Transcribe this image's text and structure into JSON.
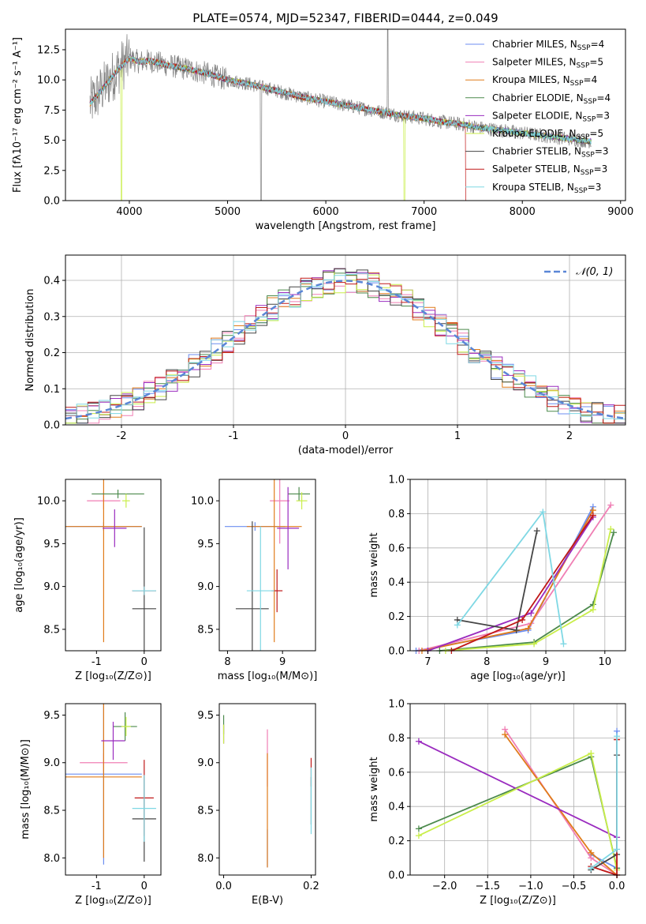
{
  "colors": {
    "chab_miles": "#6c8ef0",
    "salp_miles": "#f07fb4",
    "krou_miles": "#e07b1a",
    "chab_elodie": "#4c8a4c",
    "salp_elodie": "#9a2bbf",
    "krou_elodie": "#c9ee4a",
    "chab_stelib": "#454545",
    "salp_stelib": "#c01818",
    "krou_stelib": "#7fd8e4",
    "data": "#808080",
    "normal": "#5a86d6"
  },
  "chart_data": [
    {
      "id": "spectrum",
      "type": "line",
      "title": "PLATE=0574, MJD=52347, FIBERID=0444, z=0.049",
      "xlabel": "wavelength [Angstrom, rest frame]",
      "ylabel": "Flux [fλ10⁻¹⁷ erg cm⁻² s⁻¹ A⁻¹]",
      "xlim": [
        3350,
        9050
      ],
      "ylim": [
        0,
        14.2
      ],
      "xticks": [
        "4000",
        "5000",
        "6000",
        "7000",
        "8000",
        "9000"
      ],
      "yticks": [
        "0.0",
        "2.5",
        "5.0",
        "7.5",
        "10.0",
        "12.5"
      ],
      "continuum": [
        [
          3600,
          8.0
        ],
        [
          3700,
          9.0
        ],
        [
          3800,
          10.0
        ],
        [
          3900,
          11.0
        ],
        [
          4000,
          11.8
        ],
        [
          4100,
          11.5
        ],
        [
          4200,
          11.6
        ],
        [
          4400,
          11.2
        ],
        [
          4600,
          10.9
        ],
        [
          4800,
          10.5
        ],
        [
          5000,
          10.0
        ],
        [
          5200,
          9.7
        ],
        [
          5400,
          9.3
        ],
        [
          5600,
          8.9
        ],
        [
          5800,
          8.5
        ],
        [
          6000,
          8.2
        ],
        [
          6200,
          7.9
        ],
        [
          6400,
          7.6
        ],
        [
          6600,
          7.3
        ],
        [
          6800,
          7.0
        ],
        [
          7000,
          6.8
        ],
        [
          7200,
          6.5
        ],
        [
          7400,
          6.3
        ],
        [
          7600,
          6.0
        ],
        [
          7800,
          5.8
        ],
        [
          8000,
          5.6
        ],
        [
          8200,
          5.4
        ],
        [
          8400,
          5.2
        ],
        [
          8600,
          5.0
        ],
        [
          8700,
          4.9
        ]
      ],
      "data_range": [
        3600,
        8700
      ],
      "legend_position": "top-right",
      "legend": [
        {
          "label": "Chabrier MILES, N",
          "sub": "SSP",
          "suffix": "=4",
          "color": "#6c8ef0"
        },
        {
          "label": "Salpeter MILES, N",
          "sub": "SSP",
          "suffix": "=5",
          "color": "#f07fb4"
        },
        {
          "label": "Kroupa MILES, N",
          "sub": "SSP",
          "suffix": "=4",
          "color": "#e07b1a"
        },
        {
          "label": "Chabrier ELODIE, N",
          "sub": "SSP",
          "suffix": "=4",
          "color": "#4c8a4c"
        },
        {
          "label": "Salpeter ELODIE, N",
          "sub": "SSP",
          "suffix": "=3",
          "color": "#9a2bbf"
        },
        {
          "label": "Kroupa ELODIE, N",
          "sub": "SSP",
          "suffix": "=5",
          "color": "#c9ee4a"
        },
        {
          "label": "Chabrier STELIB, N",
          "sub": "SSP",
          "suffix": "=3",
          "color": "#454545"
        },
        {
          "label": "Salpeter STELIB, N",
          "sub": "SSP",
          "suffix": "=3",
          "color": "#c01818"
        },
        {
          "label": "Kroupa STELIB, N",
          "sub": "SSP",
          "suffix": "=3",
          "color": "#7fd8e4"
        }
      ]
    },
    {
      "id": "residuals",
      "type": "line",
      "xlabel": "(data-model)/error",
      "ylabel": "Normed distribution",
      "xlim": [
        -2.5,
        2.5
      ],
      "ylim": [
        0,
        0.47
      ],
      "xticks": [
        -2,
        -1,
        0,
        1,
        2
      ],
      "yticks": [
        "0.0",
        "0.1",
        "0.2",
        "0.3",
        "0.4"
      ],
      "grid": true,
      "legend_label": "𝒩(0, 1)",
      "legend_position": "top-right",
      "bin_width": 0.1
    },
    {
      "id": "age_vs_Z",
      "type": "scatter",
      "xlabel": "Z [log₁₀(Z/Z⊙)]",
      "ylabel": "age  [log₁₀(age/yr)]",
      "xlim": [
        -1.65,
        0.35
      ],
      "ylim": [
        8.25,
        10.25
      ],
      "xticks": [
        -1,
        0
      ],
      "yticks": [
        "8.5",
        "9.0",
        "9.5",
        "10.0"
      ],
      "points": [
        {
          "x": -0.85,
          "y": 9.7,
          "xerr": 0.8,
          "yerr": 0.05,
          "c": "chab_miles"
        },
        {
          "x": -0.85,
          "y": 10.0,
          "xerr": 0.35,
          "yerr": 0.1,
          "c": "salp_miles"
        },
        {
          "x": -0.85,
          "y": 9.7,
          "xerr": 0.8,
          "yerr": 1.35,
          "c": "krou_miles"
        },
        {
          "x": -0.55,
          "y": 10.08,
          "xerr": 0.55,
          "yerr": 0.05,
          "c": "chab_elodie"
        },
        {
          "x": -0.62,
          "y": 9.68,
          "xerr": 0.25,
          "yerr": 0.22,
          "c": "salp_elodie"
        },
        {
          "x": -0.38,
          "y": 10.0,
          "xerr": 0.08,
          "yerr": 0.08,
          "c": "krou_elodie"
        },
        {
          "x": 0.0,
          "y": 8.74,
          "xerr": 0.25,
          "yerr": 0.95,
          "c": "chab_stelib"
        },
        {
          "x": 0.0,
          "y": 8.95,
          "xerr": 0.25,
          "yerr": 0.05,
          "c": "salp_stelib"
        },
        {
          "x": 0.0,
          "y": 8.95,
          "xerr": 0.25,
          "yerr": 0.05,
          "c": "krou_stelib"
        }
      ]
    },
    {
      "id": "age_vs_mass",
      "type": "scatter",
      "xlabel": "mass [log₁₀(M/M⊙)]",
      "ylabel": "",
      "xlim": [
        7.85,
        9.6
      ],
      "ylim": [
        8.25,
        10.25
      ],
      "xticks": [
        8,
        9
      ],
      "yticks": [
        "8.5",
        "9.0",
        "9.5",
        "10.0"
      ],
      "points": [
        {
          "x": 8.5,
          "y": 9.7,
          "xerr": 0.55,
          "yerr": 0.05,
          "c": "chab_miles"
        },
        {
          "x": 8.95,
          "y": 10.0,
          "xerr": 0.18,
          "yerr": 0.5,
          "c": "salp_miles"
        },
        {
          "x": 8.85,
          "y": 9.7,
          "xerr": 0.5,
          "yerr": 1.35,
          "c": "krou_miles"
        },
        {
          "x": 9.3,
          "y": 10.08,
          "xerr": 0.2,
          "yerr": 0.08,
          "c": "chab_elodie"
        },
        {
          "x": 9.1,
          "y": 9.68,
          "xerr": 0.2,
          "yerr": 0.48,
          "c": "salp_elodie"
        },
        {
          "x": 9.35,
          "y": 10.0,
          "xerr": 0.1,
          "yerr": 0.1,
          "c": "krou_elodie"
        },
        {
          "x": 8.45,
          "y": 8.74,
          "xerr": 0.3,
          "yerr": 1.02,
          "c": "chab_stelib"
        },
        {
          "x": 8.9,
          "y": 8.95,
          "xerr": 0.1,
          "yerr": 0.25,
          "c": "salp_stelib"
        },
        {
          "x": 8.6,
          "y": 8.95,
          "xerr": 0.25,
          "yerr": 0.75,
          "c": "krou_stelib"
        }
      ]
    },
    {
      "id": "weight_vs_age",
      "type": "line",
      "xlabel": "age  [log₁₀(age/yr)]",
      "ylabel": "mass weight",
      "xlim": [
        6.7,
        10.35
      ],
      "ylim": [
        0,
        1.0
      ],
      "xticks": [
        7,
        8,
        9,
        10
      ],
      "yticks": [
        "0.0",
        "0.2",
        "0.4",
        "0.6",
        "0.8",
        "1.0"
      ],
      "grid": true,
      "series": [
        {
          "c": "chab_miles",
          "x": [
            6.8,
            8.7,
            9.8
          ],
          "y": [
            0.0,
            0.12,
            0.84
          ]
        },
        {
          "c": "salp_miles",
          "x": [
            6.85,
            8.75,
            10.1
          ],
          "y": [
            0.0,
            0.16,
            0.85
          ]
        },
        {
          "c": "krou_miles",
          "x": [
            6.9,
            8.7,
            9.8
          ],
          "y": [
            0.0,
            0.13,
            0.82
          ]
        },
        {
          "c": "chab_elodie",
          "x": [
            7.2,
            8.8,
            9.8,
            10.15
          ],
          "y": [
            0.0,
            0.05,
            0.27,
            0.69
          ]
        },
        {
          "c": "salp_elodie",
          "x": [
            7.0,
            8.75,
            9.8
          ],
          "y": [
            0.0,
            0.22,
            0.78
          ]
        },
        {
          "c": "krou_elodie",
          "x": [
            7.3,
            8.8,
            9.8,
            10.1
          ],
          "y": [
            0.0,
            0.04,
            0.24,
            0.71
          ]
        },
        {
          "c": "chab_stelib",
          "x": [
            7.5,
            8.5,
            8.85
          ],
          "y": [
            0.18,
            0.12,
            0.7
          ]
        },
        {
          "c": "salp_stelib",
          "x": [
            7.4,
            8.6,
            9.8
          ],
          "y": [
            0.0,
            0.18,
            0.79
          ]
        },
        {
          "c": "krou_stelib",
          "x": [
            7.5,
            8.95,
            9.3
          ],
          "y": [
            0.15,
            0.81,
            0.04
          ]
        }
      ]
    },
    {
      "id": "mass_vs_Z",
      "type": "scatter",
      "xlabel": "Z [log₁₀(Z/Z⊙)]",
      "ylabel": "mass [log₁₀(M/M⊙)]",
      "xlim": [
        -1.65,
        0.35
      ],
      "ylim": [
        7.82,
        9.62
      ],
      "xticks": [
        -1,
        0
      ],
      "yticks": [
        "8.0",
        "8.5",
        "9.0",
        "9.5"
      ],
      "points": [
        {
          "x": -0.85,
          "y": 8.88,
          "xerr": 0.8,
          "yerr": 0.95,
          "c": "chab_miles"
        },
        {
          "x": -0.85,
          "y": 9.0,
          "xerr": 0.5,
          "yerr": 0.1,
          "c": "salp_miles"
        },
        {
          "x": -0.85,
          "y": 8.85,
          "xerr": 0.8,
          "yerr": 0.85,
          "c": "krou_miles"
        },
        {
          "x": -0.4,
          "y": 9.38,
          "xerr": 0.25,
          "yerr": 0.15,
          "c": "chab_elodie"
        },
        {
          "x": -0.65,
          "y": 9.23,
          "xerr": 0.25,
          "yerr": 0.2,
          "c": "salp_elodie"
        },
        {
          "x": -0.38,
          "y": 9.38,
          "xerr": 0.1,
          "yerr": 0.1,
          "c": "krou_elodie"
        },
        {
          "x": 0.0,
          "y": 8.41,
          "xerr": 0.25,
          "yerr": 0.45,
          "c": "chab_stelib"
        },
        {
          "x": 0.0,
          "y": 8.63,
          "xerr": 0.2,
          "yerr": 0.4,
          "c": "salp_stelib"
        },
        {
          "x": 0.0,
          "y": 8.52,
          "xerr": 0.25,
          "yerr": 0.35,
          "c": "krou_stelib"
        }
      ]
    },
    {
      "id": "mass_vs_ebv",
      "type": "scatter",
      "xlabel": "E(B-V)",
      "ylabel": "",
      "xlim": [
        -0.01,
        0.21
      ],
      "ylim": [
        7.82,
        9.62
      ],
      "xticks": [
        "0.0",
        "0.2"
      ],
      "yticks": [
        "8.0",
        "8.5",
        "9.0",
        "9.5"
      ],
      "points": [
        {
          "x": 0.1,
          "y": 8.1,
          "xerr": 0,
          "yerr": 0.2,
          "c": "chab_miles"
        },
        {
          "x": 0.1,
          "y": 9.05,
          "xerr": 0,
          "yerr": 0.3,
          "c": "salp_miles"
        },
        {
          "x": 0.1,
          "y": 8.5,
          "xerr": 0,
          "yerr": 0.6,
          "c": "krou_miles"
        },
        {
          "x": 0.0,
          "y": 9.4,
          "xerr": 0,
          "yerr": 0.1,
          "c": "chab_elodie"
        },
        {
          "x": 0.0,
          "y": 9.3,
          "xerr": 0,
          "yerr": 0.1,
          "c": "salp_elodie"
        },
        {
          "x": 0.0,
          "y": 9.3,
          "xerr": 0,
          "yerr": 0.1,
          "c": "krou_elodie"
        },
        {
          "x": 0.2,
          "y": 8.6,
          "xerr": 0,
          "yerr": 0.25,
          "c": "chab_stelib"
        },
        {
          "x": 0.2,
          "y": 8.9,
          "xerr": 0,
          "yerr": 0.15,
          "c": "salp_stelib"
        },
        {
          "x": 0.2,
          "y": 8.6,
          "xerr": 0,
          "yerr": 0.35,
          "c": "krou_stelib"
        }
      ]
    },
    {
      "id": "weight_vs_Z",
      "type": "line",
      "xlabel": "Z [log₁₀(Z/Z⊙)]",
      "ylabel": "mass weight",
      "xlim": [
        -2.4,
        0.1
      ],
      "ylim": [
        0,
        1.0
      ],
      "xticks": [
        "−2.0",
        "−1.5",
        "−1.0",
        "−0.5",
        "0.0"
      ],
      "xtick_values": [
        -2.0,
        -1.5,
        -1.0,
        -0.5,
        0.0
      ],
      "yticks": [
        "0.0",
        "0.2",
        "0.4",
        "0.6",
        "0.8",
        "1.0"
      ],
      "grid": true,
      "series": [
        {
          "c": "chab_miles",
          "x": [
            -0.3,
            0.0,
            0.0
          ],
          "y": [
            0.12,
            0.04,
            0.84
          ]
        },
        {
          "c": "salp_miles",
          "x": [
            -1.3,
            -0.3,
            0.0
          ],
          "y": [
            0.85,
            0.1,
            0.0
          ]
        },
        {
          "c": "krou_miles",
          "x": [
            -1.3,
            -0.3,
            0.0
          ],
          "y": [
            0.82,
            0.13,
            0.0
          ]
        },
        {
          "c": "chab_elodie",
          "x": [
            -2.3,
            -0.3,
            0.0
          ],
          "y": [
            0.27,
            0.69,
            0.04
          ]
        },
        {
          "c": "salp_elodie",
          "x": [
            -2.3,
            0.0
          ],
          "y": [
            0.78,
            0.22
          ]
        },
        {
          "c": "krou_elodie",
          "x": [
            -2.3,
            -0.3,
            0.0
          ],
          "y": [
            0.23,
            0.71,
            0.03
          ]
        },
        {
          "c": "chab_stelib",
          "x": [
            -0.3,
            0.0,
            0.0
          ],
          "y": [
            0.03,
            0.12,
            0.7
          ]
        },
        {
          "c": "salp_stelib",
          "x": [
            -0.3,
            0.0,
            0.0
          ],
          "y": [
            0.05,
            0.0,
            0.79
          ]
        },
        {
          "c": "krou_stelib",
          "x": [
            -0.3,
            0.0,
            0.0
          ],
          "y": [
            0.04,
            0.15,
            0.81
          ]
        }
      ]
    }
  ]
}
